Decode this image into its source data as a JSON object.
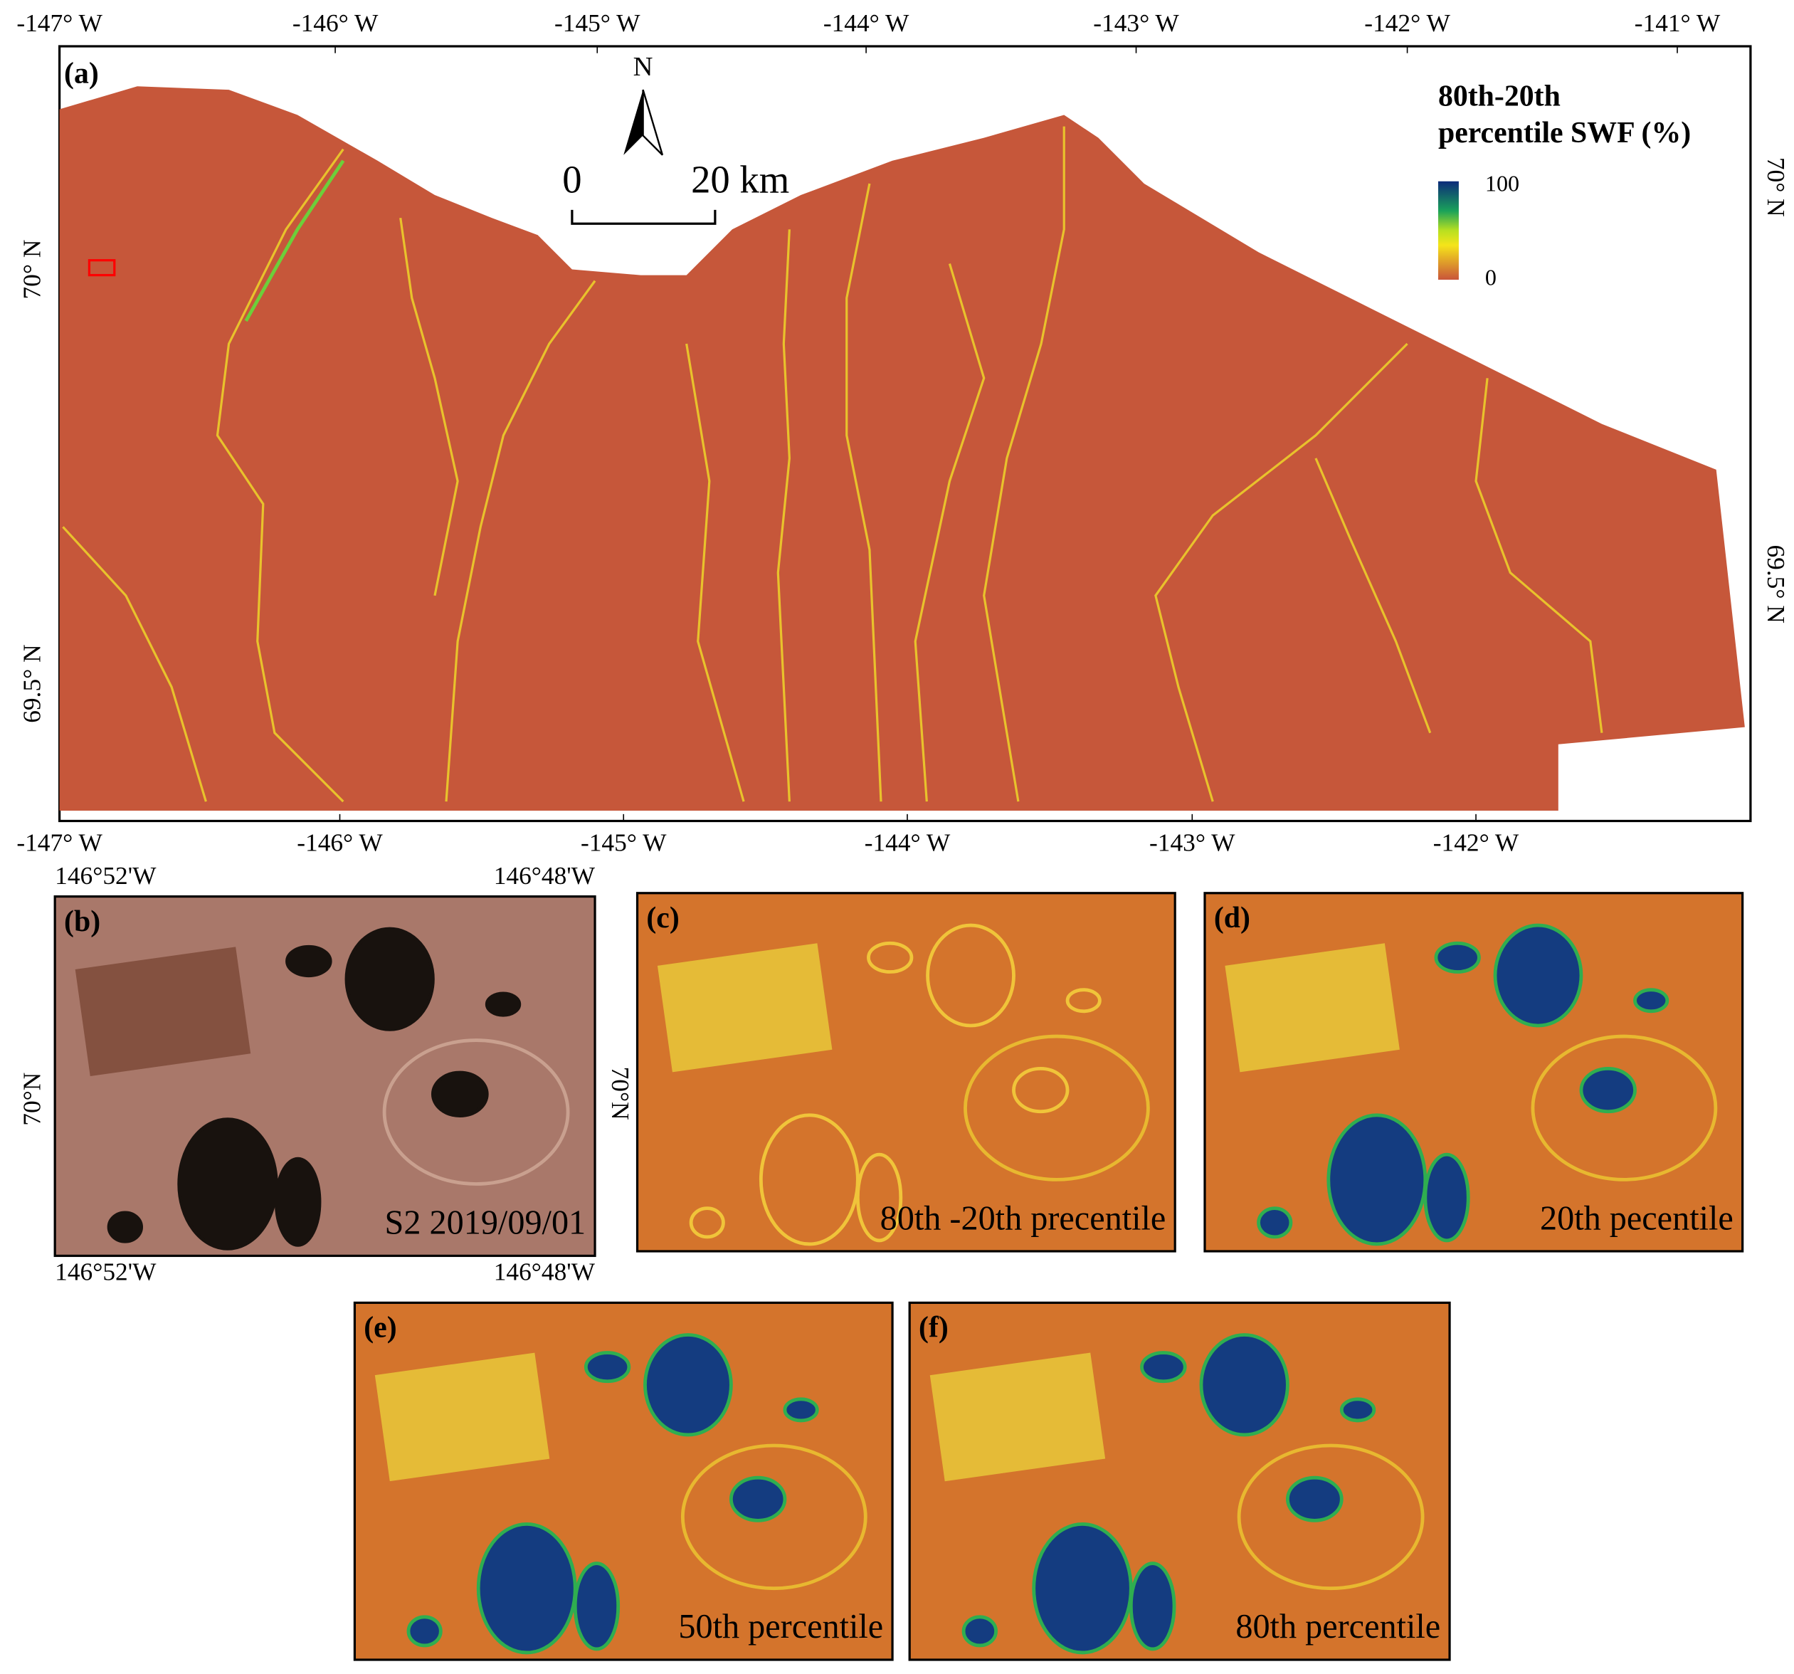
{
  "panel_a": {
    "label": "(a)",
    "top_ticks": [
      "-147° W",
      "-146° W",
      "-145° W",
      "-144° W",
      "-143° W",
      "-142° W",
      "-141° W"
    ],
    "bottom_ticks": [
      "-147° W",
      "-146° W",
      "-145° W",
      "-144° W",
      "-143° W",
      "-142° W"
    ],
    "left_ticks": [
      "70° N",
      "69.5° N"
    ],
    "right_ticks": [
      "70° N",
      "69.5° N"
    ],
    "north": "N",
    "scale_bar": {
      "start": "0",
      "end": "20 km"
    },
    "legend": {
      "title_lines": [
        "80th-20th",
        "percentile SWF (%)"
      ],
      "max": "100",
      "min": "0"
    }
  },
  "panel_b": {
    "label": "(b)",
    "top_ticks": [
      "146°52'W",
      "146°48'W"
    ],
    "bottom_ticks": [
      "146°52'W",
      "146°48'W"
    ],
    "left_tick": "70°N",
    "caption": "S2  2019/09/01"
  },
  "panel_c": {
    "label": "(c)",
    "left_tick": "70°N",
    "caption": "80th -20th precentile"
  },
  "panel_d": {
    "label": "(d)",
    "caption": "20th pecentile"
  },
  "panel_e": {
    "label": "(e)",
    "caption": "50th percentile"
  },
  "panel_f": {
    "label": "(f)",
    "caption": "80th percentile"
  }
}
